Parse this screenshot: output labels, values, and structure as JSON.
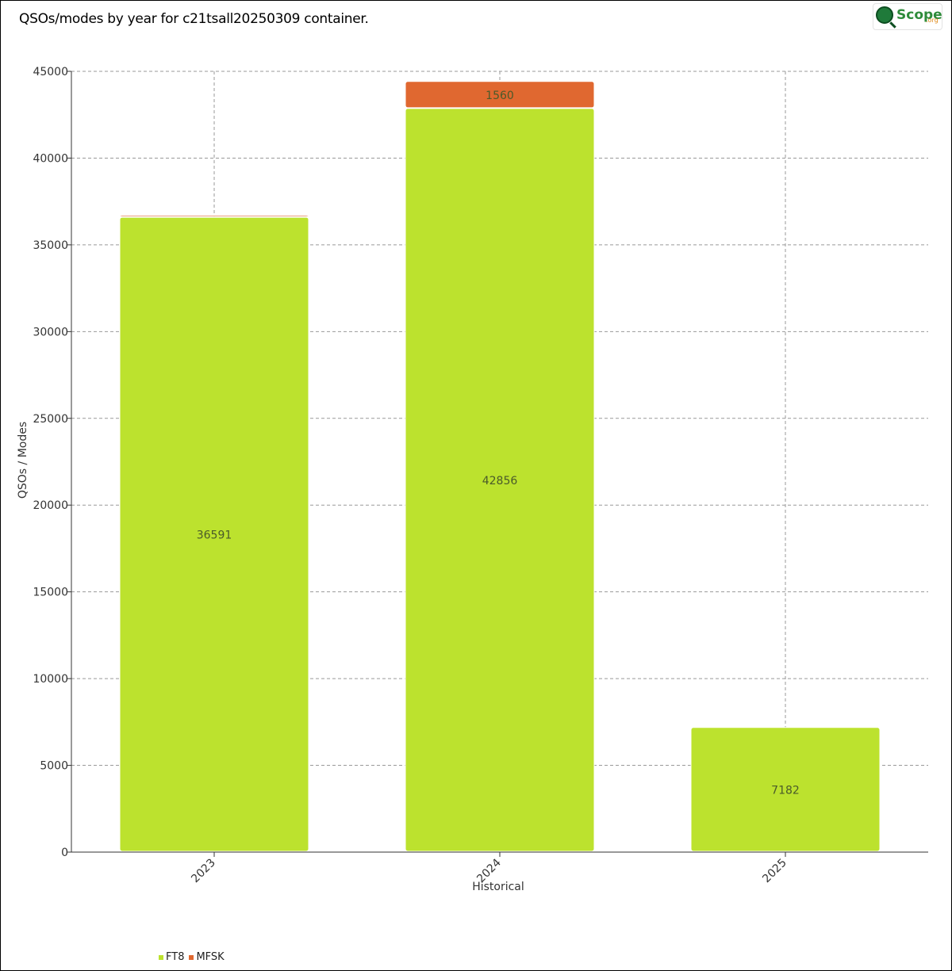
{
  "header": {
    "title": "QSOs/modes by year for c21tsall20250309 container.",
    "logo_text": "Scope",
    "logo_suffix": ".org"
  },
  "chart_data": {
    "type": "bar",
    "stacked": true,
    "title": "QSOs/modes by year for c21tsall20250309 container.",
    "xlabel": "Historical",
    "ylabel": "QSOs / Modes",
    "categories": [
      "2023",
      "2024",
      "2025"
    ],
    "series": [
      {
        "name": "FT8",
        "color": "#bce22e",
        "values": [
          36591,
          42856,
          7182
        ]
      },
      {
        "name": "MFSK",
        "color": "#e06830",
        "values": [
          119,
          1560,
          0
        ]
      }
    ],
    "data_labels": [
      {
        "series": 0,
        "category": 0,
        "text": "36591"
      },
      {
        "series": 0,
        "category": 1,
        "text": "42856"
      },
      {
        "series": 0,
        "category": 2,
        "text": "7182"
      },
      {
        "series": 1,
        "category": 1,
        "text": "1560"
      }
    ],
    "ylim": [
      0,
      45000
    ],
    "yticks": [
      0,
      5000,
      10000,
      15000,
      20000,
      25000,
      30000,
      35000,
      40000,
      45000
    ],
    "grid": true,
    "legend_position": "bottom-left"
  }
}
